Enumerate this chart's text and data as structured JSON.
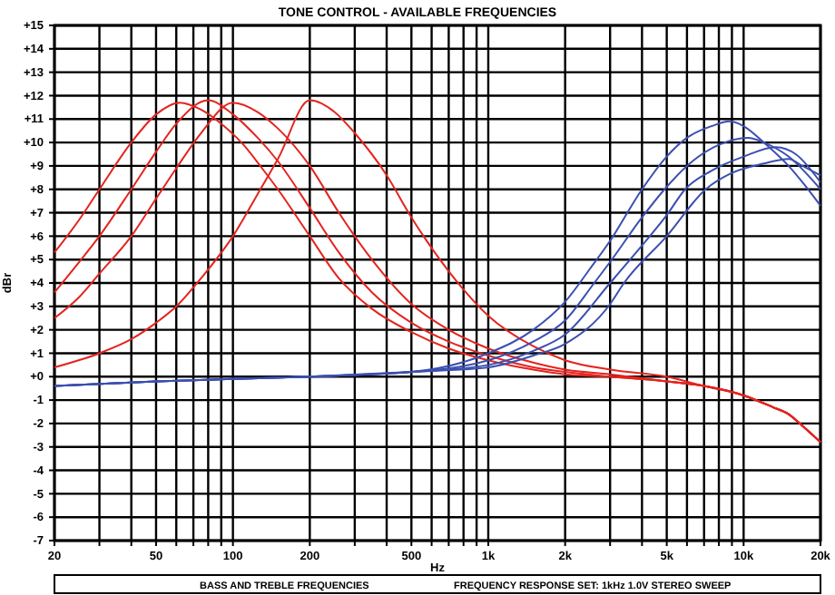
{
  "chart_data": {
    "type": "line",
    "title": "TONE CONTROL - AVAILABLE FREQUENCIES",
    "xlabel": "Hz",
    "ylabel": "dBr",
    "log": "x",
    "grid": true,
    "line_style": "solid",
    "marker": "none",
    "xlim": [
      20,
      20000
    ],
    "xticks": [
      20,
      {
        "value": 30,
        "label": null
      },
      {
        "value": 40,
        "label": null
      },
      50,
      {
        "value": 60,
        "label": null
      },
      {
        "value": 70,
        "label": null
      },
      {
        "value": 80,
        "label": null
      },
      {
        "value": 90,
        "label": null
      },
      100,
      200,
      {
        "value": 300,
        "label": null
      },
      {
        "value": 400,
        "label": null
      },
      500,
      {
        "value": 600,
        "label": null
      },
      {
        "value": 700,
        "label": null
      },
      {
        "value": 800,
        "label": null
      },
      {
        "value": 900,
        "label": null
      },
      {
        "value": 1000,
        "label": "1k"
      },
      {
        "value": 2000,
        "label": "2k"
      },
      {
        "value": 3000,
        "label": null
      },
      {
        "value": 4000,
        "label": null
      },
      {
        "value": 5000,
        "label": "5k"
      },
      {
        "value": 6000,
        "label": null
      },
      {
        "value": 7000,
        "label": null
      },
      {
        "value": 8000,
        "label": null
      },
      {
        "value": 9000,
        "label": null
      },
      {
        "value": 10000,
        "label": "10k"
      },
      {
        "value": 20000,
        "label": "20k"
      }
    ],
    "ylim": [
      -7,
      15
    ],
    "yticks": [
      {
        "value": -7,
        "label": "-7"
      },
      {
        "value": -6,
        "label": "-6"
      },
      {
        "value": -5,
        "label": "-5"
      },
      {
        "value": -4,
        "label": "-4"
      },
      {
        "value": -3,
        "label": "-3"
      },
      {
        "value": -2,
        "label": "-2"
      },
      {
        "value": -1,
        "label": "-1"
      },
      {
        "value": 0,
        "label": "+0"
      },
      {
        "value": 1,
        "label": "+1"
      },
      {
        "value": 2,
        "label": "+2"
      },
      {
        "value": 3,
        "label": "+3"
      },
      {
        "value": 4,
        "label": "+4"
      },
      {
        "value": 5,
        "label": "+5"
      },
      {
        "value": 6,
        "label": "+6"
      },
      {
        "value": 7,
        "label": "+7"
      },
      {
        "value": 8,
        "label": "+8"
      },
      {
        "value": 9,
        "label": "+9"
      },
      {
        "value": 10,
        "label": "+10"
      },
      {
        "value": 11,
        "label": "+11"
      },
      {
        "value": 12,
        "label": "+12"
      },
      {
        "value": 13,
        "label": "+13"
      },
      {
        "value": 14,
        "label": "+14"
      },
      {
        "value": 15,
        "label": "+15"
      }
    ],
    "annotations": [
      "BASS AND TREBLE FREQUENCIES",
      "FREQUENCY RESPONSE SET: 1kHz 1.0V STEREO SWEEP"
    ],
    "series": [
      {
        "color": "#e3241f",
        "x": [
          20,
          25,
          30,
          40,
          50,
          62,
          75,
          90,
          110,
          130,
          150,
          200,
          260,
          350,
          500,
          700,
          1000,
          1500,
          2000,
          3000,
          5000,
          7000,
          10000,
          13000,
          15000,
          17000,
          20000
        ],
        "values": [
          5.3,
          6.7,
          8.0,
          10.0,
          11.2,
          11.7,
          11.4,
          10.8,
          9.9,
          8.9,
          8.0,
          6.0,
          4.2,
          2.9,
          1.9,
          1.2,
          0.7,
          0.3,
          0.1,
          0,
          -0.2,
          -0.4,
          -0.8,
          -1.3,
          -1.6,
          -2.1,
          -2.8
        ]
      },
      {
        "color": "#e3241f",
        "x": [
          20,
          25,
          30,
          40,
          50,
          60,
          80,
          100,
          125,
          150,
          200,
          260,
          350,
          500,
          700,
          1000,
          1500,
          2000,
          3000,
          5000,
          7000,
          10000,
          13000,
          15000,
          17000,
          20000
        ],
        "values": [
          3.6,
          4.9,
          6.0,
          8.0,
          9.6,
          10.8,
          11.8,
          11.2,
          10.2,
          9.2,
          7.2,
          5.3,
          3.6,
          2.3,
          1.5,
          0.9,
          0.4,
          0.2,
          0,
          -0.2,
          -0.4,
          -0.8,
          -1.3,
          -1.6,
          -2.1,
          -2.8
        ]
      },
      {
        "color": "#e3241f",
        "x": [
          20,
          25,
          30,
          40,
          50,
          60,
          75,
          100,
          125,
          150,
          200,
          260,
          350,
          500,
          700,
          1000,
          1500,
          2000,
          3000,
          5000,
          7000,
          10000,
          13000,
          15000,
          17000,
          20000
        ],
        "values": [
          2.5,
          3.4,
          4.4,
          6.0,
          7.6,
          8.9,
          10.4,
          11.7,
          11.3,
          10.6,
          9.0,
          7.0,
          5.0,
          3.1,
          2.0,
          1.2,
          0.6,
          0.3,
          0.1,
          -0.2,
          -0.4,
          -0.8,
          -1.3,
          -1.6,
          -2.1,
          -2.8
        ]
      },
      {
        "color": "#e3241f",
        "x": [
          20,
          30,
          40,
          50,
          60,
          75,
          100,
          125,
          150,
          200,
          250,
          300,
          400,
          500,
          700,
          1000,
          1500,
          2000,
          3000,
          5000,
          7000,
          10000,
          13000,
          15000,
          17000,
          20000
        ],
        "values": [
          0.4,
          1.0,
          1.6,
          2.3,
          3.0,
          4.2,
          6.0,
          7.8,
          9.3,
          11.8,
          11.3,
          10.4,
          8.6,
          6.8,
          4.5,
          2.6,
          1.3,
          0.7,
          0.3,
          0,
          -0.4,
          -0.8,
          -1.3,
          -1.6,
          -2.1,
          -2.8
        ]
      },
      {
        "color": "#3b4fb0",
        "x": [
          20,
          50,
          100,
          200,
          500,
          1000,
          1500,
          2000,
          2500,
          3000,
          4000,
          5000,
          6000,
          7500,
          8800,
          10000,
          12000,
          15000,
          17000,
          20000
        ],
        "values": [
          -0.4,
          -0.2,
          -0.1,
          0,
          0.2,
          1.0,
          2.0,
          3.2,
          4.6,
          5.8,
          8.0,
          9.4,
          10.2,
          10.7,
          10.9,
          10.7,
          10.0,
          9.0,
          8.3,
          7.3
        ]
      },
      {
        "color": "#3b4fb0",
        "x": [
          20,
          50,
          100,
          200,
          500,
          1000,
          1500,
          2000,
          2600,
          3000,
          4000,
          4900,
          6000,
          8000,
          10400,
          12000,
          15000,
          20000
        ],
        "values": [
          -0.4,
          -0.2,
          -0.1,
          0,
          0.2,
          0.7,
          1.5,
          2.4,
          4.0,
          4.9,
          6.8,
          8.0,
          9.0,
          9.9,
          10.2,
          10.0,
          9.4,
          8.0
        ]
      },
      {
        "color": "#3b4fb0",
        "x": [
          20,
          50,
          100,
          200,
          500,
          1000,
          1500,
          2000,
          3000,
          4000,
          5000,
          5900,
          7500,
          10000,
          13400,
          16000,
          20000
        ],
        "values": [
          -0.4,
          -0.2,
          -0.1,
          0,
          0.2,
          0.5,
          1.1,
          1.8,
          4.0,
          5.6,
          6.9,
          8.0,
          8.8,
          9.4,
          9.8,
          9.5,
          8.3
        ]
      },
      {
        "color": "#3b4fb0",
        "x": [
          20,
          50,
          100,
          200,
          500,
          1000,
          1500,
          2000,
          3000,
          3400,
          5000,
          7100,
          9000,
          12000,
          15000,
          17000,
          20000
        ],
        "values": [
          -0.4,
          -0.2,
          -0.1,
          0,
          0.2,
          0.4,
          0.9,
          1.4,
          3.1,
          4.0,
          6.0,
          8.0,
          8.7,
          9.1,
          9.3,
          9.0,
          8.6
        ]
      }
    ]
  }
}
